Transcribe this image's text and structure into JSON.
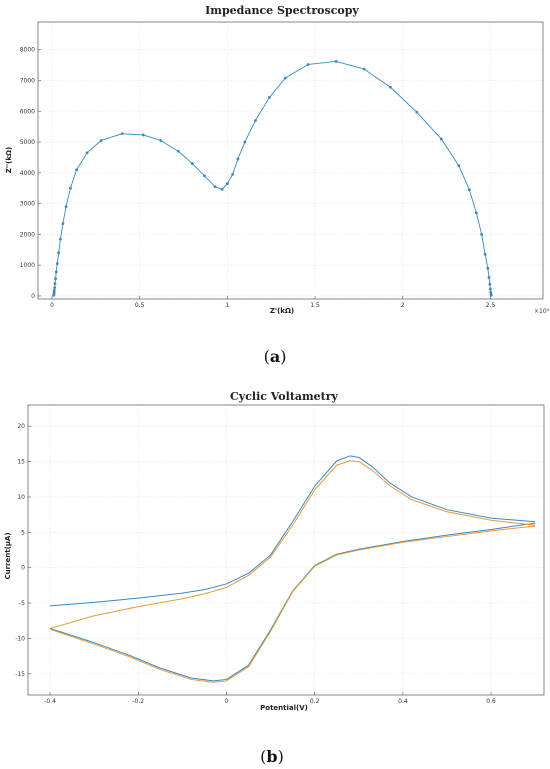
{
  "captions": {
    "a": "a",
    "b": "b"
  },
  "chart_data": [
    {
      "type": "line",
      "title": "Impedance Spectroscopy",
      "xlabel": "Z'(kΩ)",
      "ylabel": "Z''(kΩ)",
      "x_multiplier": "×10⁴",
      "xlim": [
        -0.08,
        2.8
      ],
      "ylim": [
        -100,
        8900
      ],
      "x_ticks": [
        0,
        0.5,
        1,
        1.5,
        2,
        2.5
      ],
      "x_tick_labels": [
        "0",
        "0.5",
        "1",
        "1.5",
        "2",
        "2.5"
      ],
      "y_ticks": [
        0,
        1000,
        2000,
        3000,
        4000,
        5000,
        6000,
        7000,
        8000
      ],
      "y_tick_labels": [
        "0",
        "1000",
        "2000",
        "3000",
        "4000",
        "5000",
        "6000",
        "7000",
        "8000"
      ],
      "grid": true,
      "color": "#3b88bf",
      "series": [
        {
          "x": [
            0.01,
            0.011,
            0.012,
            0.013,
            0.015,
            0.017,
            0.02,
            0.024,
            0.03,
            0.038,
            0.048,
            0.062,
            0.08,
            0.105,
            0.14,
            0.2,
            0.28,
            0.4,
            0.52,
            0.62,
            0.72,
            0.8,
            0.87,
            0.93,
            0.97,
            1.0,
            1.03,
            1.06,
            1.1,
            1.16,
            1.24,
            1.33,
            1.46,
            1.62,
            1.78,
            1.93,
            2.08,
            2.22,
            2.32,
            2.38,
            2.42,
            2.45,
            2.47,
            2.485,
            2.492,
            2.497,
            2.5,
            2.502,
            2.504,
            2.505
          ],
          "y": [
            20,
            60,
            110,
            180,
            270,
            400,
            560,
            780,
            1050,
            1400,
            1850,
            2350,
            2900,
            3500,
            4100,
            4650,
            5050,
            5270,
            5230,
            5050,
            4700,
            4300,
            3900,
            3550,
            3460,
            3650,
            3950,
            4450,
            5000,
            5700,
            6450,
            7080,
            7520,
            7620,
            7370,
            6780,
            5970,
            5100,
            4230,
            3450,
            2700,
            2000,
            1350,
            900,
            600,
            380,
            220,
            120,
            50,
            20
          ]
        }
      ]
    },
    {
      "type": "line",
      "title": "Cyclic Voltametry",
      "xlabel": "Potential(V)",
      "ylabel": "Current(μA)",
      "xlim": [
        -0.45,
        0.72
      ],
      "ylim": [
        -18,
        23
      ],
      "x_ticks": [
        -0.4,
        -0.2,
        0,
        0.2,
        0.4,
        0.6
      ],
      "x_tick_labels": [
        "-0.4",
        "-0.2",
        "0",
        "0.2",
        "0.4",
        "0.6"
      ],
      "y_ticks": [
        -15,
        -10,
        -5,
        0,
        5,
        10,
        15,
        20
      ],
      "y_tick_labels": [
        "-15",
        "-10",
        "-5",
        "0",
        "5",
        "10",
        "15",
        "20"
      ],
      "grid": true,
      "series": [
        {
          "color": "#3b88bf",
          "x": [
            -0.4,
            -0.3,
            -0.2,
            -0.1,
            -0.05,
            0,
            0.05,
            0.1,
            0.15,
            0.2,
            0.25,
            0.28,
            0.3,
            0.33,
            0.37,
            0.42,
            0.5,
            0.6,
            0.7
          ],
          "y": [
            -5.4,
            -4.9,
            -4.3,
            -3.6,
            -3.1,
            -2.3,
            -0.8,
            1.8,
            6.5,
            11.5,
            15.1,
            15.8,
            15.6,
            14.3,
            12.0,
            10.0,
            8.2,
            7.0,
            6.5
          ]
        },
        {
          "color": "#3b88bf",
          "x": [
            0.7,
            0.6,
            0.5,
            0.4,
            0.3,
            0.25,
            0.2,
            0.15,
            0.1,
            0.05,
            0,
            -0.03,
            -0.08,
            -0.15,
            -0.22,
            -0.3,
            -0.4
          ],
          "y": [
            6.3,
            5.4,
            4.6,
            3.7,
            2.6,
            1.9,
            0.3,
            -3.3,
            -8.8,
            -13.8,
            -15.8,
            -16.0,
            -15.6,
            -14.2,
            -12.4,
            -10.6,
            -8.6
          ]
        },
        {
          "color": "#e59a3a",
          "x": [
            -0.4,
            -0.3,
            -0.2,
            -0.1,
            -0.05,
            0,
            0.05,
            0.1,
            0.15,
            0.2,
            0.25,
            0.28,
            0.3,
            0.33,
            0.37,
            0.42,
            0.5,
            0.6,
            0.7
          ],
          "y": [
            -8.6,
            -6.8,
            -5.5,
            -4.4,
            -3.7,
            -2.8,
            -1.1,
            1.5,
            6.0,
            11.0,
            14.5,
            15.1,
            15.0,
            13.8,
            11.6,
            9.6,
            7.9,
            6.7,
            6.0
          ]
        },
        {
          "color": "#e59a3a",
          "x": [
            0.7,
            0.6,
            0.5,
            0.4,
            0.3,
            0.25,
            0.2,
            0.15,
            0.1,
            0.05,
            0,
            -0.03,
            -0.08,
            -0.15,
            -0.22,
            -0.3,
            -0.4
          ],
          "y": [
            5.9,
            5.2,
            4.4,
            3.6,
            2.5,
            1.8,
            0.2,
            -3.4,
            -9.0,
            -14.0,
            -16.0,
            -16.2,
            -15.8,
            -14.4,
            -12.6,
            -10.8,
            -8.7
          ]
        }
      ]
    }
  ]
}
